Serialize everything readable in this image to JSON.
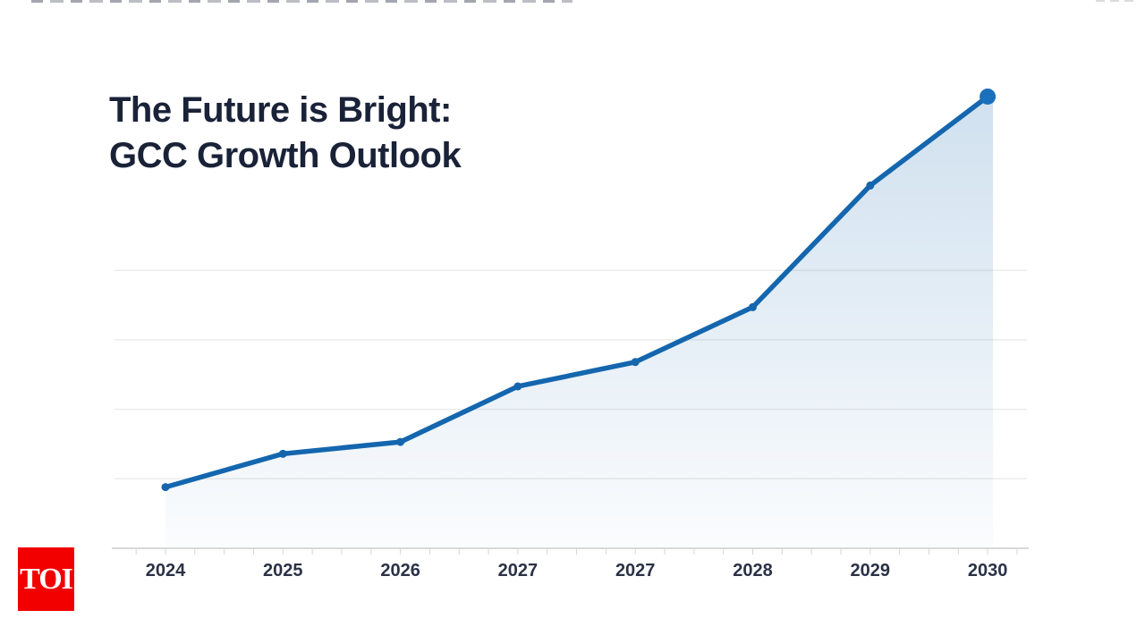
{
  "page": {
    "background": "#ffffff"
  },
  "title": {
    "line1": "The Future is Bright:",
    "line2": "GCC Growth Outlook",
    "color": "#1a2238"
  },
  "branding": {
    "logo_text": "TOI",
    "logo_bg": "#f20000",
    "logo_text_color": "#ffffff"
  },
  "chart_data": {
    "type": "area",
    "title": "The Future is Bright: GCC Growth Outlook",
    "categories": [
      "2024",
      "2025",
      "2026",
      "2027",
      "2027",
      "2028",
      "2029",
      "2030"
    ],
    "values": [
      0.88,
      1.36,
      1.53,
      2.33,
      2.68,
      3.47,
      5.22,
      6.5
    ],
    "xlabel": "",
    "ylabel": "",
    "ylim": [
      0,
      7
    ],
    "y_gridlines": [
      1,
      2,
      3,
      4
    ],
    "grid": true,
    "legend": "none",
    "y_tick_labels_visible": false,
    "line_color": "#1466ae",
    "marker_color": "#1466ae",
    "endpoint_color": "#1a70ba",
    "area_top_color": "rgba(20,102,174,0.20)",
    "area_bottom_color": "rgba(20,102,174,0.02)",
    "axis_color": "#d9d9d9",
    "tick_color": "#d5d5d5",
    "grid_color": "#ececec",
    "tick_label_color": "#2b3246"
  }
}
